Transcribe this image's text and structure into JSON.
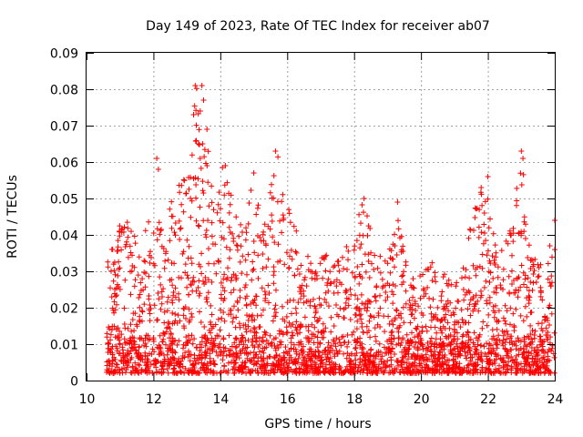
{
  "chart_data": {
    "type": "scatter",
    "title": "Day 149 of 2023, Rate Of TEC Index for receiver ab07",
    "xlabel": "GPS time / hours",
    "ylabel": "ROTI / TECUs",
    "xlim": [
      10,
      24
    ],
    "ylim": [
      0,
      0.09
    ],
    "x_ticks": [
      "10",
      "12",
      "14",
      "16",
      "18",
      "20",
      "22",
      "24"
    ],
    "y_ticks": [
      "0",
      "0.01",
      "0.02",
      "0.03",
      "0.04",
      "0.05",
      "0.06",
      "0.07",
      "0.08",
      "0.09"
    ],
    "grid": true,
    "marker": "+",
    "color": "#ff0000",
    "series": [
      {
        "x_range": [
          10.6,
          24
        ],
        "envelope": [
          [
            10.6,
            0.032
          ],
          [
            10.8,
            0.038
          ],
          [
            11.0,
            0.045
          ],
          [
            11.3,
            0.043
          ],
          [
            11.6,
            0.039
          ],
          [
            12.0,
            0.047
          ],
          [
            12.3,
            0.041
          ],
          [
            12.6,
            0.052
          ],
          [
            13.0,
            0.058
          ],
          [
            13.3,
            0.081
          ],
          [
            13.5,
            0.077
          ],
          [
            13.8,
            0.055
          ],
          [
            14.1,
            0.059
          ],
          [
            14.4,
            0.05
          ],
          [
            14.7,
            0.043
          ],
          [
            15.0,
            0.057
          ],
          [
            15.3,
            0.042
          ],
          [
            15.7,
            0.063
          ],
          [
            16.0,
            0.049
          ],
          [
            16.4,
            0.038
          ],
          [
            16.8,
            0.032
          ],
          [
            17.2,
            0.036
          ],
          [
            17.6,
            0.034
          ],
          [
            18.0,
            0.042
          ],
          [
            18.3,
            0.05
          ],
          [
            18.7,
            0.035
          ],
          [
            19.0,
            0.034
          ],
          [
            19.3,
            0.049
          ],
          [
            19.7,
            0.03
          ],
          [
            20.0,
            0.029
          ],
          [
            20.4,
            0.034
          ],
          [
            20.8,
            0.029
          ],
          [
            21.2,
            0.03
          ],
          [
            21.5,
            0.044
          ],
          [
            21.8,
            0.053
          ],
          [
            22.0,
            0.05
          ],
          [
            22.3,
            0.036
          ],
          [
            22.6,
            0.039
          ],
          [
            23.0,
            0.063
          ],
          [
            23.3,
            0.034
          ],
          [
            23.7,
            0.032
          ],
          [
            24.0,
            0.044
          ]
        ],
        "baseline_typical": 0.006,
        "minimum": 0.002,
        "outliers": [
          [
            12.1,
            0.061
          ],
          [
            12.15,
            0.058
          ],
          [
            13.25,
            0.081
          ],
          [
            13.45,
            0.081
          ],
          [
            13.5,
            0.077
          ],
          [
            13.4,
            0.074
          ],
          [
            13.2,
            0.073
          ],
          [
            13.6,
            0.069
          ],
          [
            13.35,
            0.065
          ],
          [
            13.4,
            0.061
          ],
          [
            14.15,
            0.059
          ],
          [
            15.65,
            0.063
          ],
          [
            15.0,
            0.057
          ],
          [
            18.3,
            0.05
          ],
          [
            19.3,
            0.049
          ],
          [
            21.8,
            0.053
          ],
          [
            22.0,
            0.056
          ],
          [
            23.0,
            0.063
          ],
          [
            23.05,
            0.061
          ],
          [
            24.0,
            0.044
          ]
        ]
      }
    ]
  }
}
